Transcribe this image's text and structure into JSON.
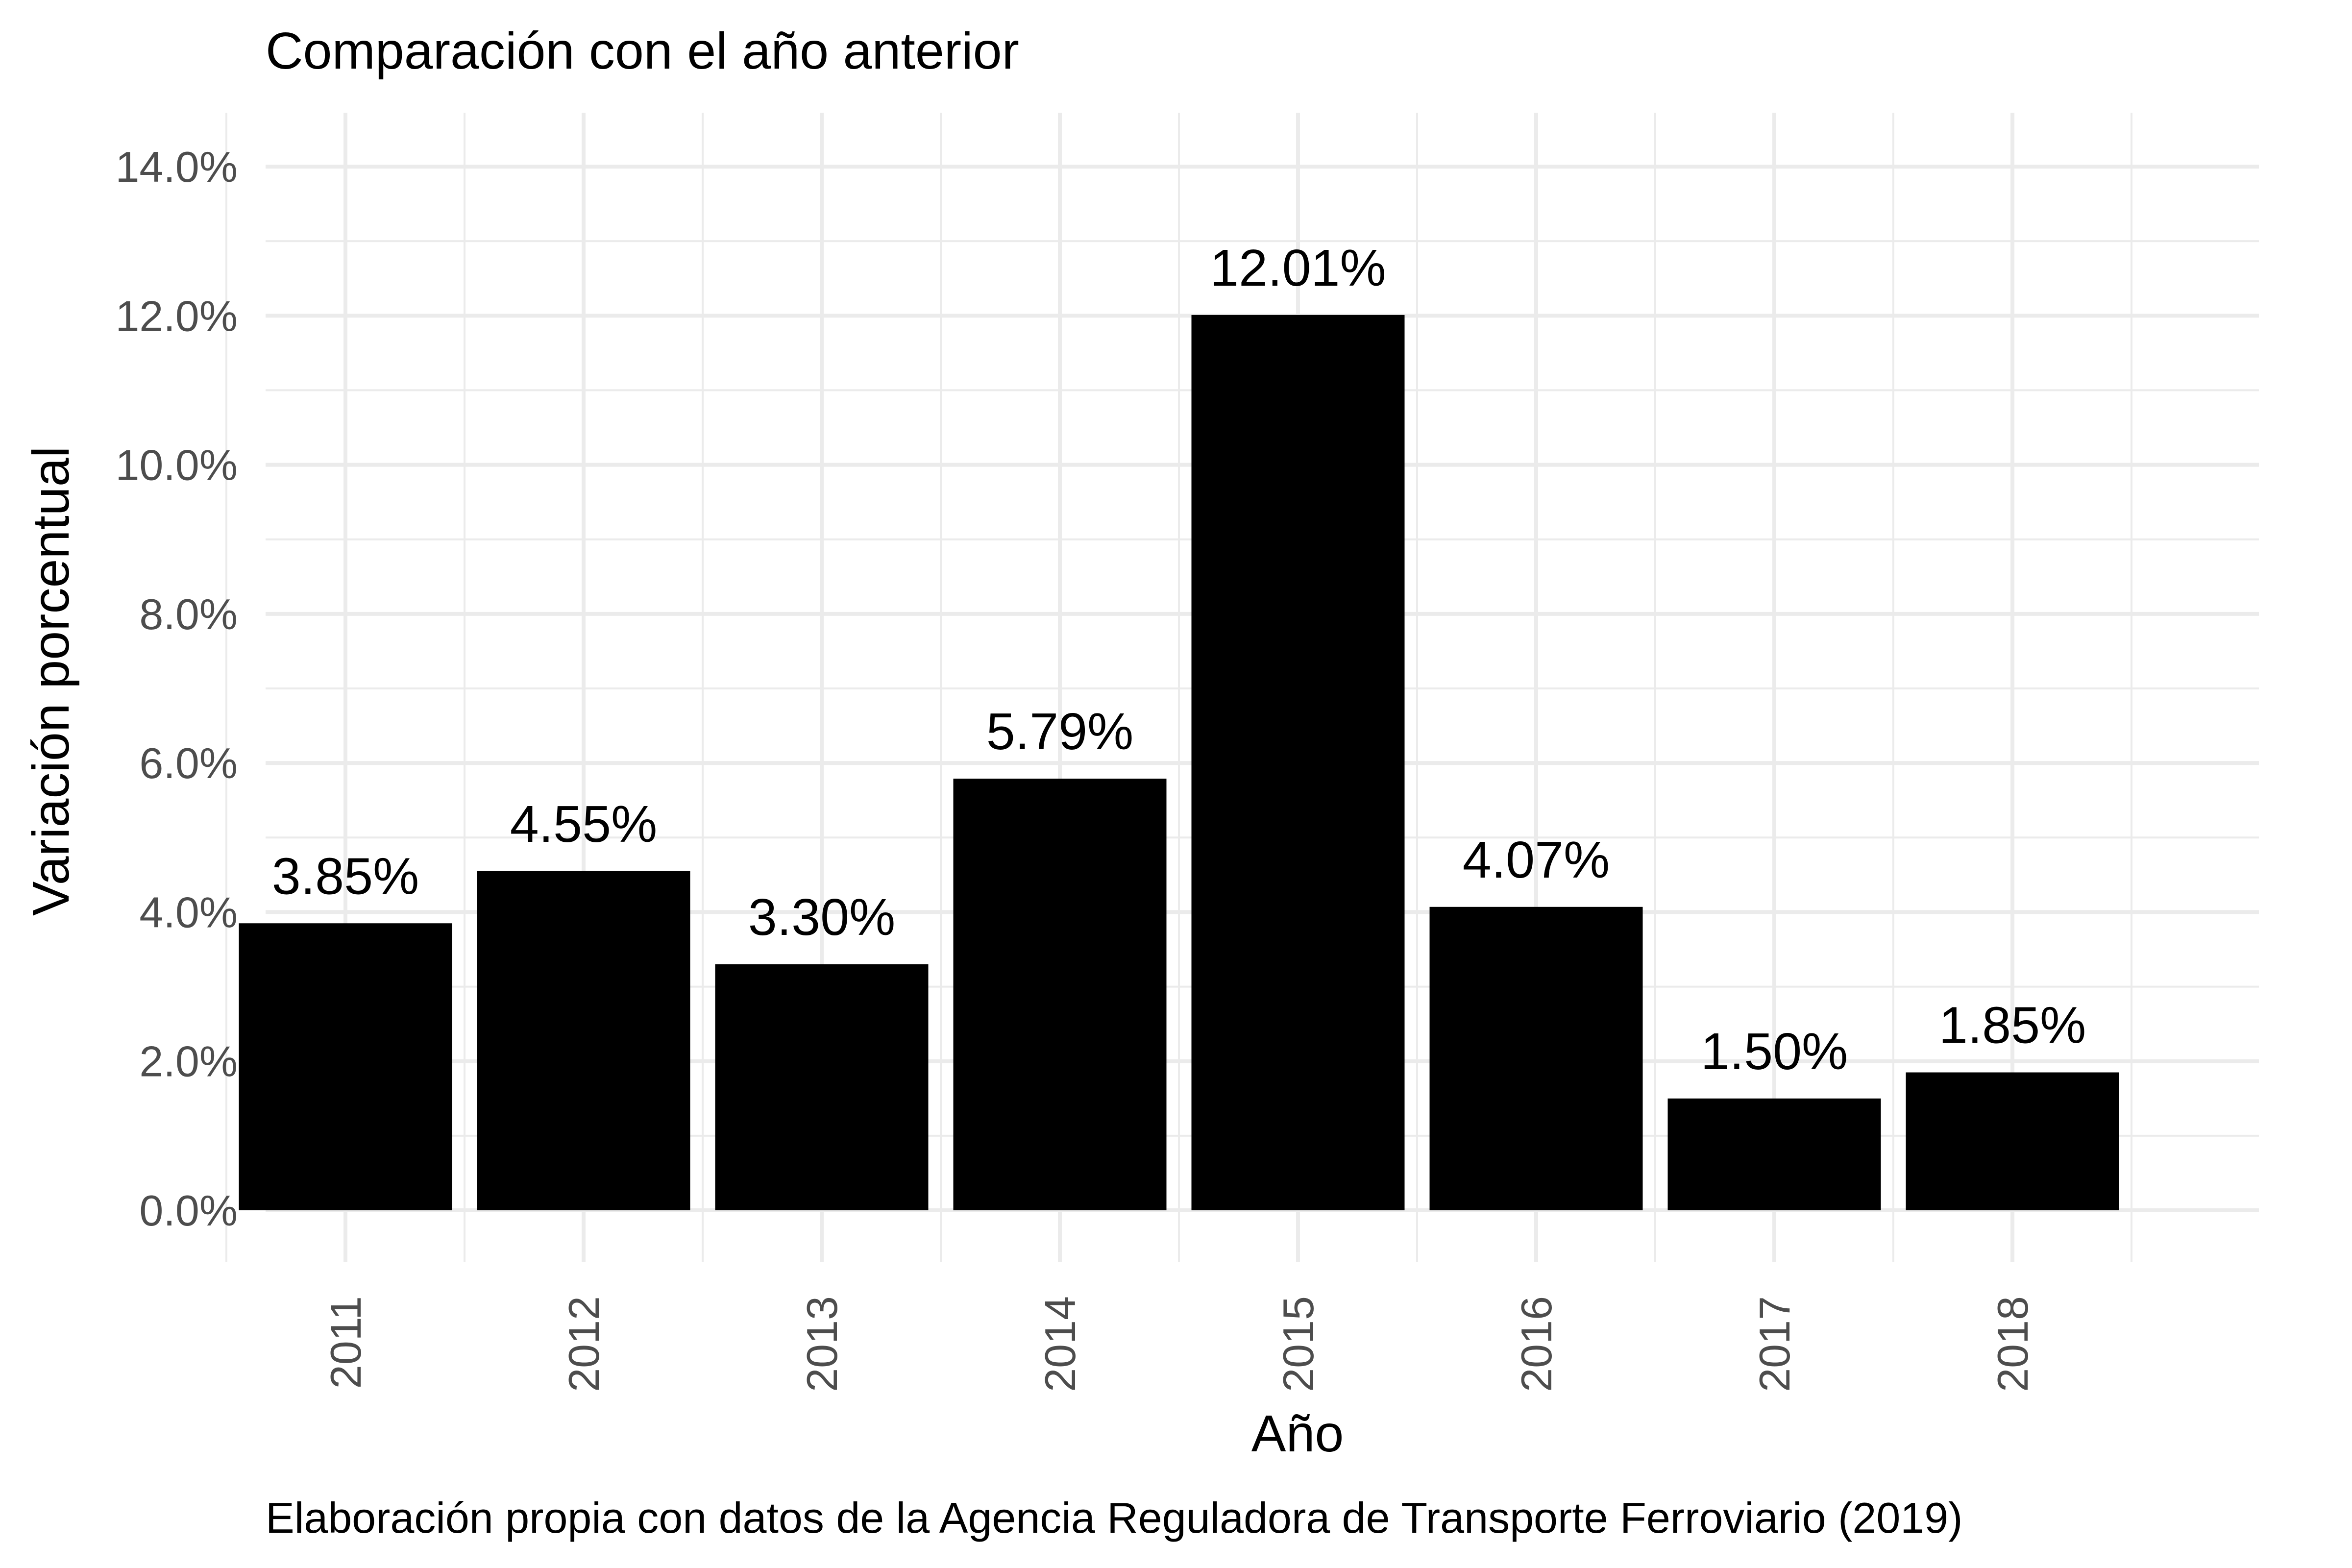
{
  "chart_data": {
    "type": "bar",
    "title": "Comparación con el año anterior",
    "caption": "Elaboración propia con datos de la Agencia Reguladora de Transporte Ferroviario (2019)",
    "xlabel": "Año",
    "ylabel": "Variación porcentual",
    "categories": [
      "2011",
      "2012",
      "2013",
      "2014",
      "2015",
      "2016",
      "2017",
      "2018"
    ],
    "values": [
      3.85,
      4.55,
      3.3,
      5.79,
      12.01,
      4.07,
      1.5,
      1.85
    ],
    "value_labels": [
      "3.85%",
      "4.55%",
      "3.30%",
      "5.79%",
      "12.01%",
      "4.07%",
      "1.50%",
      "1.85%"
    ],
    "ylim": [
      0,
      14
    ],
    "y_ticks": [
      0,
      2,
      4,
      6,
      8,
      10,
      12,
      14
    ],
    "y_tick_labels": [
      "0.0%",
      "2.0%",
      "4.0%",
      "6.0%",
      "8.0%",
      "10.0%",
      "12.0%",
      "14.0%"
    ],
    "grid": true,
    "legend": "none",
    "bar_color": "#000000",
    "grid_color": "#ebebeb"
  }
}
